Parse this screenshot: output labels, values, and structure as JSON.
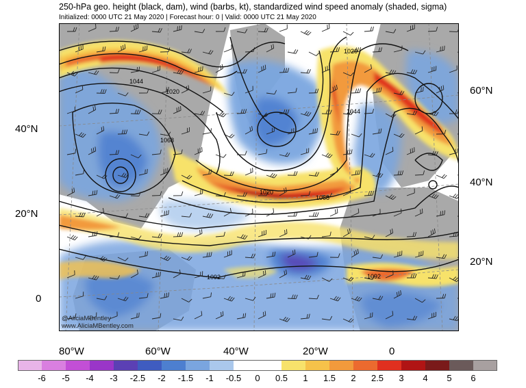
{
  "title": "250-hPa geo. height (black, dam), wind (barbs, kt), standardized wind speed anomaly (shaded, sigma)",
  "subtitle": "Initialized: 0000 UTC 21 May 2020 | Forecast hour: 0 | Valid: 0000 UTC 21 May 2020",
  "axes": {
    "left_lat": [
      "40°N",
      "20°N",
      "0"
    ],
    "right_lat": [
      "60°N",
      "40°N",
      "20°N"
    ],
    "bottom_lon": [
      "80°W",
      "60°W",
      "40°W",
      "20°W",
      "0"
    ]
  },
  "contour_labels": [
    "1044",
    "1020",
    "1068",
    "1020",
    "1044",
    "1020",
    "1068",
    "1092",
    "1092"
  ],
  "credit": {
    "handle": "@AliciaMBentley",
    "url": "www.AliciaMBentley.com"
  },
  "colorbar": {
    "labels": [
      "-6",
      "-5",
      "-4",
      "-3",
      "-2.5",
      "-2",
      "-1.5",
      "-1",
      "-0.5",
      "0",
      "0.5",
      "1",
      "1.5",
      "2",
      "2.5",
      "3",
      "4",
      "5",
      "6"
    ],
    "colors": [
      "#e8b4e8",
      "#d97fe0",
      "#c24fd6",
      "#9a36c8",
      "#5b40b4",
      "#3f5cc0",
      "#4d7fd0",
      "#7aa5df",
      "#aac8ec",
      "#ffffff",
      "#ffffff",
      "#f7e26b",
      "#f6c24a",
      "#f29a3c",
      "#ec6a2f",
      "#e0301f",
      "#b01414",
      "#7a1a1a",
      "#6b5a5a",
      "#a8a0a0"
    ]
  },
  "colors": {
    "land": "#a9a9a9",
    "ocean_neutral": "#ffffff",
    "contour": "#111111",
    "border": "#444444"
  }
}
